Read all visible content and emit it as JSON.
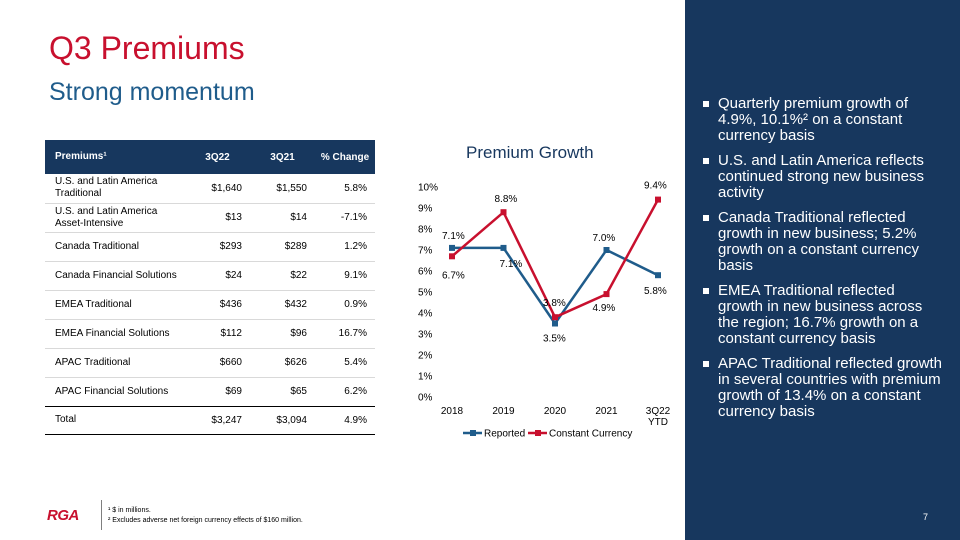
{
  "title": "Q3 Premiums",
  "subtitle": "Strong momentum",
  "table": {
    "headers": [
      "Premiums¹",
      "3Q22",
      "3Q21",
      "% Change"
    ],
    "rows": [
      [
        "U.S. and Latin America Traditional",
        "$1,640",
        "$1,550",
        "5.8%"
      ],
      [
        "U.S. and Latin America Asset-Intensive",
        "$13",
        "$14",
        "-7.1%"
      ],
      [
        "Canada Traditional",
        "$293",
        "$289",
        "1.2%"
      ],
      [
        "Canada Financial Solutions",
        "$24",
        "$22",
        "9.1%"
      ],
      [
        "EMEA Traditional",
        "$436",
        "$432",
        "0.9%"
      ],
      [
        "EMEA Financial Solutions",
        "$112",
        "$96",
        "16.7%"
      ],
      [
        "APAC Traditional",
        "$660",
        "$626",
        "5.4%"
      ],
      [
        "APAC Financial Solutions",
        "$69",
        "$65",
        "6.2%"
      ],
      [
        "Total",
        "$3,247",
        "$3,094",
        "4.9%"
      ]
    ]
  },
  "chart_data": {
    "type": "line",
    "title": "Premium Growth",
    "categories": [
      "2018",
      "2019",
      "2020",
      "2021",
      "3Q22 YTD"
    ],
    "series": [
      {
        "name": "Reported",
        "values": [
          7.1,
          7.1,
          3.5,
          7.0,
          5.8
        ],
        "color": "#1F5C8B",
        "labels": [
          "7.1%",
          "7.1%",
          "3.5%",
          "7.0%",
          "5.8%"
        ]
      },
      {
        "name": "Constant Currency",
        "values": [
          6.7,
          8.8,
          3.8,
          4.9,
          9.4
        ],
        "color": "#C8102E",
        "labels": [
          "6.7%",
          "8.8%",
          "3.8%",
          "4.9%",
          "9.4%"
        ]
      }
    ],
    "y_ticks": [
      "0%",
      "1%",
      "2%",
      "3%",
      "4%",
      "5%",
      "6%",
      "7%",
      "8%",
      "9%",
      "10%"
    ],
    "ylim": [
      0,
      10
    ],
    "legend": "bottom",
    "grid": false
  },
  "bullets": [
    "Quarterly premium growth of 4.9%, 10.1%² on a constant currency basis",
    "U.S. and Latin America reflects continued strong new business activity",
    "Canada Traditional reflected growth in new business; 5.2% growth on a constant currency basis",
    "EMEA Traditional reflected growth in new business across the region; 16.7% growth on a constant currency basis",
    "APAC Traditional reflected growth in several countries with premium growth of 13.4% on a constant currency basis"
  ],
  "footer": {
    "logo": "RGA",
    "note1": "¹ $ in millions.",
    "note2": "² Excludes adverse net foreign currency effects of $160 million.",
    "page": "7"
  },
  "colors": {
    "brand_red": "#C8102E",
    "navy": "#17375E",
    "blue": "#1F5C8B"
  }
}
